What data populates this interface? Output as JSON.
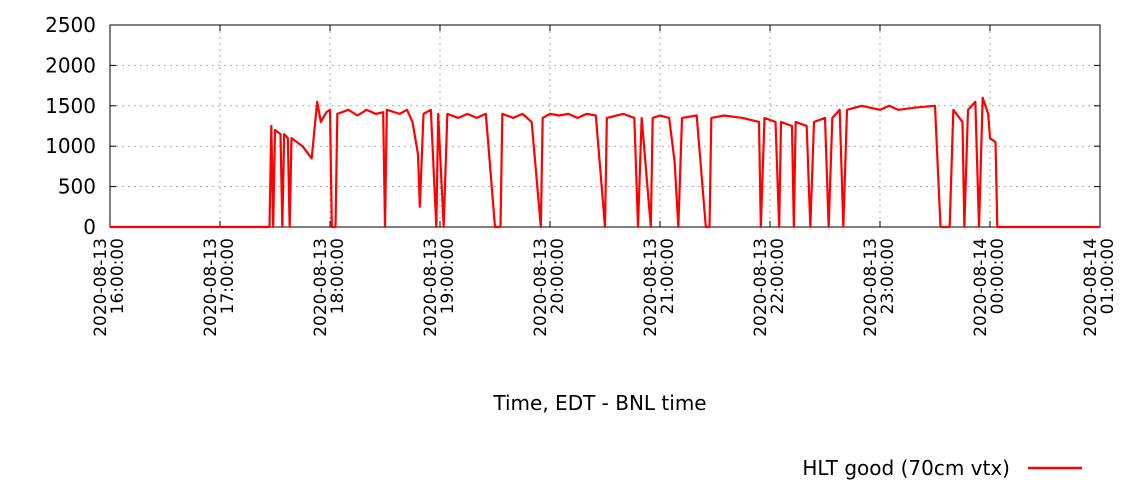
{
  "chart_data": {
    "type": "line",
    "x_label": "Time, EDT - BNL time",
    "x": [
      "2020-08-13 16:00:00",
      "2020-08-13 17:27:00",
      "2020-08-13 17:28:00",
      "2020-08-13 17:29:00",
      "2020-08-13 17:30:00",
      "2020-08-13 17:33:00",
      "2020-08-13 17:34:00",
      "2020-08-13 17:35:00",
      "2020-08-13 17:37:00",
      "2020-08-13 17:38:00",
      "2020-08-13 17:39:00",
      "2020-08-13 17:45:00",
      "2020-08-13 17:50:00",
      "2020-08-13 17:53:00",
      "2020-08-13 17:55:00",
      "2020-08-13 17:58:00",
      "2020-08-13 18:00:00",
      "2020-08-13 18:01:00",
      "2020-08-13 18:03:00",
      "2020-08-13 18:04:00",
      "2020-08-13 18:10:00",
      "2020-08-13 18:15:00",
      "2020-08-13 18:20:00",
      "2020-08-13 18:25:00",
      "2020-08-13 18:29:00",
      "2020-08-13 18:30:00",
      "2020-08-13 18:31:00",
      "2020-08-13 18:38:00",
      "2020-08-13 18:42:00",
      "2020-08-13 18:45:00",
      "2020-08-13 18:48:00",
      "2020-08-13 18:49:00",
      "2020-08-13 18:51:00",
      "2020-08-13 18:55:00",
      "2020-08-13 18:58:00",
      "2020-08-13 18:59:00",
      "2020-08-13 19:02:00",
      "2020-08-13 19:04:00",
      "2020-08-13 19:10:00",
      "2020-08-13 19:15:00",
      "2020-08-13 19:20:00",
      "2020-08-13 19:25:00",
      "2020-08-13 19:30:00",
      "2020-08-13 19:33:00",
      "2020-08-13 19:34:00",
      "2020-08-13 19:40:00",
      "2020-08-13 19:45:00",
      "2020-08-13 19:50:00",
      "2020-08-13 19:55:00",
      "2020-08-13 19:56:00",
      "2020-08-13 20:00:00",
      "2020-08-13 20:05:00",
      "2020-08-13 20:10:00",
      "2020-08-13 20:15:00",
      "2020-08-13 20:20:00",
      "2020-08-13 20:25:00",
      "2020-08-13 20:30:00",
      "2020-08-13 20:31:00",
      "2020-08-13 20:40:00",
      "2020-08-13 20:46:00",
      "2020-08-13 20:48:00",
      "2020-08-13 20:50:00",
      "2020-08-13 20:55:00",
      "2020-08-13 20:56:00",
      "2020-08-13 21:00:00",
      "2020-08-13 21:05:00",
      "2020-08-13 21:08:00",
      "2020-08-13 21:10:00",
      "2020-08-13 21:12:00",
      "2020-08-13 21:20:00",
      "2020-08-13 21:25:00",
      "2020-08-13 21:27:00",
      "2020-08-13 21:28:00",
      "2020-08-13 21:35:00",
      "2020-08-13 21:45:00",
      "2020-08-13 21:54:00",
      "2020-08-13 21:55:00",
      "2020-08-13 21:57:00",
      "2020-08-13 22:03:00",
      "2020-08-13 22:05:00",
      "2020-08-13 22:06:00",
      "2020-08-13 22:12:00",
      "2020-08-13 22:13:00",
      "2020-08-13 22:14:00",
      "2020-08-13 22:20:00",
      "2020-08-13 22:22:00",
      "2020-08-13 22:24:00",
      "2020-08-13 22:30:00",
      "2020-08-13 22:32:00",
      "2020-08-13 22:34:00",
      "2020-08-13 22:38:00",
      "2020-08-13 22:40:00",
      "2020-08-13 22:42:00",
      "2020-08-13 22:50:00",
      "2020-08-13 23:00:00",
      "2020-08-13 23:05:00",
      "2020-08-13 23:10:00",
      "2020-08-13 23:20:00",
      "2020-08-13 23:30:00",
      "2020-08-13 23:33:00",
      "2020-08-13 23:38:00",
      "2020-08-13 23:40:00",
      "2020-08-13 23:45:00",
      "2020-08-13 23:46:00",
      "2020-08-13 23:48:00",
      "2020-08-13 23:52:00",
      "2020-08-13 23:54:00",
      "2020-08-13 23:56:00",
      "2020-08-13 23:59:00",
      "2020-08-14 00:00:00",
      "2020-08-14 00:03:00",
      "2020-08-14 00:04:00",
      "2020-08-14 01:00:00"
    ],
    "series": [
      {
        "name": "HLT good (70cm vtx)",
        "color": "#ff0000",
        "values": [
          0,
          0,
          1250,
          0,
          1200,
          1150,
          0,
          1150,
          1100,
          0,
          1100,
          1000,
          850,
          1550,
          1300,
          1420,
          1450,
          0,
          0,
          1400,
          1450,
          1380,
          1450,
          1400,
          1420,
          0,
          1450,
          1400,
          1450,
          1300,
          900,
          250,
          1400,
          1450,
          0,
          1400,
          0,
          1400,
          1350,
          1400,
          1350,
          1400,
          0,
          0,
          1400,
          1350,
          1400,
          1300,
          0,
          1350,
          1400,
          1380,
          1400,
          1350,
          1400,
          1380,
          0,
          1350,
          1400,
          1350,
          0,
          1350,
          0,
          1350,
          1380,
          1350,
          800,
          0,
          1350,
          1380,
          0,
          0,
          1350,
          1380,
          1350,
          1300,
          0,
          1350,
          1300,
          0,
          1300,
          1250,
          0,
          1300,
          1250,
          0,
          1300,
          1350,
          0,
          1350,
          1450,
          0,
          1450,
          1500,
          1450,
          1500,
          1450,
          1480,
          1500,
          0,
          0,
          1450,
          1300,
          0,
          1450,
          1550,
          0,
          1600,
          1400,
          1100,
          1050,
          0,
          0
        ]
      }
    ],
    "xlim": [
      "2020-08-13 16:00:00",
      "2020-08-14 01:00:00"
    ],
    "xticks": [
      "2020-08-13 16:00:00",
      "2020-08-13 17:00:00",
      "2020-08-13 18:00:00",
      "2020-08-13 19:00:00",
      "2020-08-13 20:00:00",
      "2020-08-13 21:00:00",
      "2020-08-13 22:00:00",
      "2020-08-13 23:00:00",
      "2020-08-14 00:00:00",
      "2020-08-14 01:00:00"
    ],
    "ylim": [
      0,
      2500
    ],
    "yticks": [
      0,
      500,
      1000,
      1500,
      2000,
      2500
    ],
    "grid": true,
    "legend": "bottom-right"
  }
}
